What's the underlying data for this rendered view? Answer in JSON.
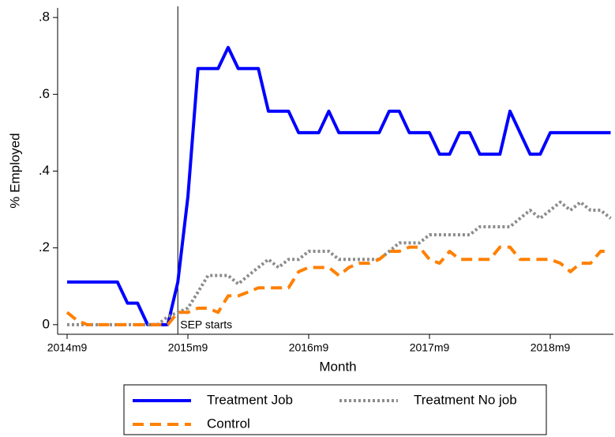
{
  "chart_data": {
    "type": "line",
    "y_label": "% Employed",
    "x_label": "Month",
    "annotation": "SEP starts",
    "categories": [
      "2014m9",
      null,
      null,
      null,
      null,
      null,
      null,
      null,
      null,
      null,
      null,
      null,
      "2015m9",
      null,
      null,
      null,
      null,
      null,
      null,
      null,
      null,
      null,
      null,
      null,
      "2016m9",
      null,
      null,
      null,
      null,
      null,
      null,
      null,
      null,
      null,
      null,
      null,
      "2017m9",
      null,
      null,
      null,
      null,
      null,
      null,
      null,
      null,
      null,
      null,
      null,
      "2018m9",
      null,
      null,
      null,
      null,
      null,
      null
    ],
    "series": [
      {
        "name": "Treatment Job",
        "color": "#0000ff",
        "dash": "solid",
        "values": [
          0.111,
          0.111,
          0.111,
          0.111,
          0.111,
          0.111,
          0.056,
          0.056,
          0,
          0,
          0,
          0.111,
          0.333,
          0.667,
          0.667,
          0.667,
          0.722,
          0.667,
          0.667,
          0.667,
          0.556,
          0.556,
          0.556,
          0.5,
          0.5,
          0.5,
          0.556,
          0.5,
          0.5,
          0.5,
          0.5,
          0.5,
          0.556,
          0.556,
          0.5,
          0.5,
          0.5,
          0.444,
          0.444,
          0.5,
          0.5,
          0.444,
          0.444,
          0.444,
          0.556,
          0.5,
          0.444,
          0.444,
          0.5,
          0.5,
          0.5,
          0.5,
          0.5,
          0.5,
          0.5
        ]
      },
      {
        "name": "Treatment No job",
        "color": "#8c8c8c",
        "dash": "dot",
        "values": [
          0,
          0,
          0,
          0,
          0,
          0,
          0,
          0,
          0,
          0,
          0.021,
          0.032,
          0.043,
          0.085,
          0.128,
          0.128,
          0.128,
          0.106,
          0.128,
          0.149,
          0.17,
          0.149,
          0.17,
          0.17,
          0.191,
          0.191,
          0.191,
          0.17,
          0.17,
          0.17,
          0.17,
          0.17,
          0.191,
          0.213,
          0.213,
          0.213,
          0.234,
          0.234,
          0.234,
          0.234,
          0.234,
          0.255,
          0.255,
          0.255,
          0.255,
          0.277,
          0.298,
          0.277,
          0.298,
          0.319,
          0.298,
          0.319,
          0.298,
          0.298,
          0.277
        ]
      },
      {
        "name": "Control",
        "color": "#ff8000",
        "dash": "dash",
        "values": [
          0.032,
          0.011,
          0,
          0,
          0,
          0,
          0,
          0,
          0,
          0,
          0,
          0.032,
          0.032,
          0.043,
          0.043,
          0.032,
          0.075,
          0.075,
          0.085,
          0.096,
          0.096,
          0.096,
          0.096,
          0.138,
          0.149,
          0.149,
          0.149,
          0.128,
          0.149,
          0.16,
          0.16,
          0.17,
          0.191,
          0.191,
          0.202,
          0.202,
          0.17,
          0.16,
          0.191,
          0.17,
          0.17,
          0.17,
          0.17,
          0.202,
          0.202,
          0.17,
          0.17,
          0.17,
          0.17,
          0.16,
          0.138,
          0.16,
          0.16,
          0.191,
          0.191
        ]
      }
    ],
    "ylim": [
      -0.025,
      0.825
    ],
    "yticks": [
      0,
      {
        "value": 0.2,
        "label": ".2"
      },
      {
        "value": 0.4,
        "label": ".4"
      },
      {
        "value": 0.6,
        "label": ".6"
      },
      {
        "value": 0.8,
        "label": ".8"
      }
    ],
    "grid": false
  }
}
